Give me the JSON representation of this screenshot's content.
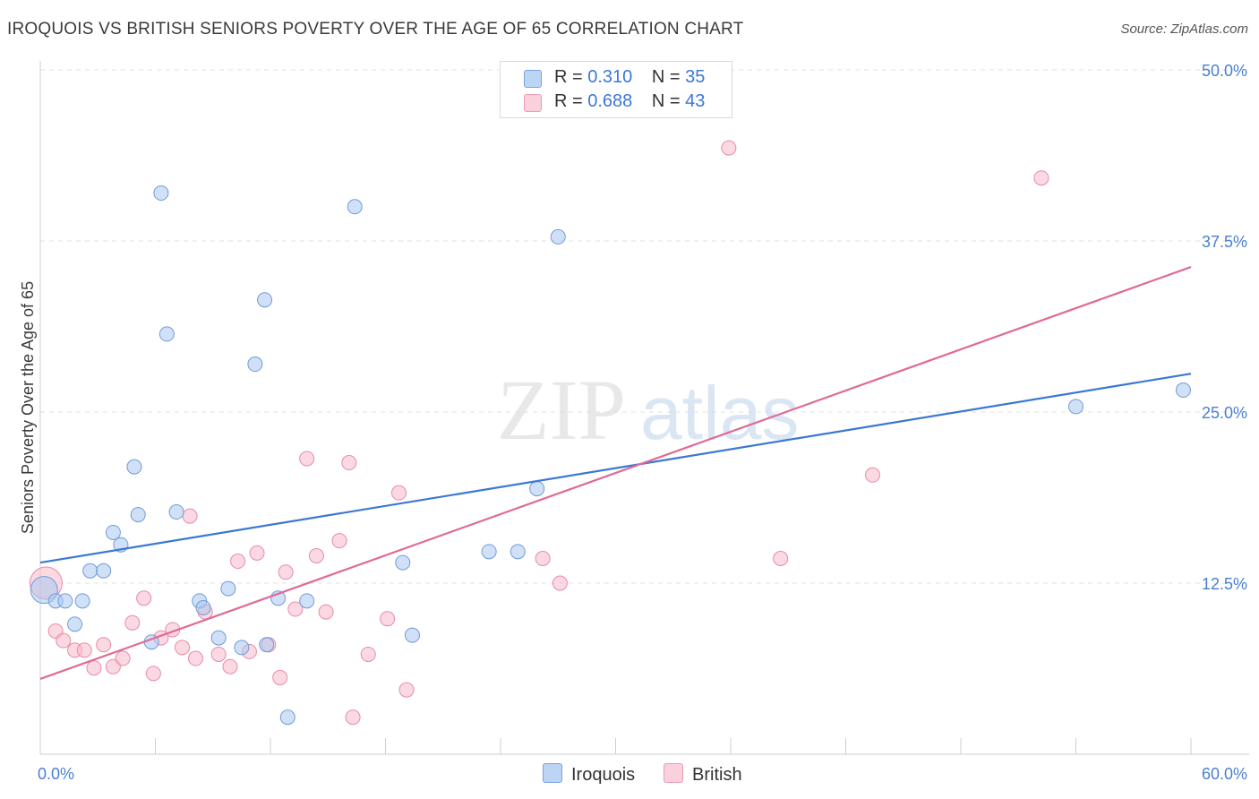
{
  "title": "IROQUOIS VS BRITISH SENIORS POVERTY OVER THE AGE OF 65 CORRELATION CHART",
  "source": "Source: ZipAtlas.com",
  "watermark": {
    "zip": "ZIP",
    "atlas": "atlas"
  },
  "legend": {
    "iroquois": {
      "r_label": "R =",
      "r_value": "0.310",
      "n_label": "N =",
      "n_value": "35"
    },
    "british": {
      "r_label": "R =",
      "r_value": "0.688",
      "n_label": "N =",
      "n_value": "43"
    }
  },
  "bottom_legend": {
    "iroquois": "Iroquois",
    "british": "British"
  },
  "colors": {
    "iroquois_fill": "#a9c8f0",
    "iroquois_stroke": "#6f9bd8",
    "iroquois_line": "#3a78d4",
    "british_fill": "#f7b9cc",
    "british_stroke": "#e98aa8",
    "british_line": "#e06a94"
  },
  "chart_data": {
    "type": "scatter",
    "title": "IROQUOIS VS BRITISH SENIORS POVERTY OVER THE AGE OF 65 CORRELATION CHART",
    "xlabel": "",
    "ylabel": "Seniors Poverty Over the Age of 65",
    "xlim": [
      0,
      60
    ],
    "ylim": [
      0,
      50
    ],
    "x_tick_labels": [
      "0.0%",
      "60.0%"
    ],
    "y_ticks": [
      12.5,
      25.0,
      37.5,
      50.0
    ],
    "y_tick_labels": [
      "12.5%",
      "25.0%",
      "37.5%",
      "50.0%"
    ],
    "grid": true,
    "series": [
      {
        "name": "Iroquois",
        "points": [
          [
            0.2,
            12.0
          ],
          [
            0.8,
            11.2
          ],
          [
            1.3,
            11.2
          ],
          [
            1.8,
            9.5
          ],
          [
            2.2,
            11.2
          ],
          [
            2.6,
            13.4
          ],
          [
            3.3,
            13.4
          ],
          [
            3.8,
            16.2
          ],
          [
            4.2,
            15.3
          ],
          [
            4.9,
            21.0
          ],
          [
            5.1,
            17.5
          ],
          [
            5.8,
            8.2
          ],
          [
            6.3,
            41.0
          ],
          [
            6.6,
            30.7
          ],
          [
            7.1,
            17.7
          ],
          [
            8.3,
            11.2
          ],
          [
            8.5,
            10.7
          ],
          [
            9.3,
            8.5
          ],
          [
            9.8,
            12.1
          ],
          [
            10.5,
            7.8
          ],
          [
            11.2,
            28.5
          ],
          [
            11.7,
            33.2
          ],
          [
            11.8,
            8.0
          ],
          [
            12.4,
            11.4
          ],
          [
            12.9,
            2.7
          ],
          [
            13.9,
            11.2
          ],
          [
            16.4,
            40.0
          ],
          [
            18.9,
            14.0
          ],
          [
            19.4,
            8.7
          ],
          [
            23.4,
            14.8
          ],
          [
            24.9,
            14.8
          ],
          [
            25.9,
            19.4
          ],
          [
            27.0,
            37.8
          ],
          [
            54.0,
            25.4
          ],
          [
            59.6,
            26.6
          ]
        ],
        "trend": {
          "x": [
            0,
            60
          ],
          "y": [
            14.0,
            27.8
          ]
        }
      },
      {
        "name": "British",
        "points": [
          [
            0.3,
            12.5
          ],
          [
            0.8,
            9.0
          ],
          [
            1.2,
            8.3
          ],
          [
            1.8,
            7.6
          ],
          [
            2.3,
            7.6
          ],
          [
            2.8,
            6.3
          ],
          [
            3.3,
            8.0
          ],
          [
            3.8,
            6.4
          ],
          [
            4.3,
            7.0
          ],
          [
            4.8,
            9.6
          ],
          [
            5.4,
            11.4
          ],
          [
            5.9,
            5.9
          ],
          [
            6.3,
            8.5
          ],
          [
            6.9,
            9.1
          ],
          [
            7.4,
            7.8
          ],
          [
            7.8,
            17.4
          ],
          [
            8.1,
            7.0
          ],
          [
            8.6,
            10.4
          ],
          [
            9.3,
            7.3
          ],
          [
            9.9,
            6.4
          ],
          [
            10.3,
            14.1
          ],
          [
            10.9,
            7.5
          ],
          [
            11.3,
            14.7
          ],
          [
            11.9,
            8.0
          ],
          [
            12.5,
            5.6
          ],
          [
            12.8,
            13.3
          ],
          [
            13.3,
            10.6
          ],
          [
            13.9,
            21.6
          ],
          [
            14.4,
            14.5
          ],
          [
            14.9,
            10.4
          ],
          [
            15.6,
            15.6
          ],
          [
            16.1,
            21.3
          ],
          [
            16.3,
            2.7
          ],
          [
            17.1,
            7.3
          ],
          [
            18.1,
            9.9
          ],
          [
            18.7,
            19.1
          ],
          [
            19.1,
            4.7
          ],
          [
            26.2,
            14.3
          ],
          [
            27.1,
            12.5
          ],
          [
            35.9,
            44.3
          ],
          [
            38.6,
            14.3
          ],
          [
            43.4,
            20.4
          ],
          [
            52.2,
            42.1
          ]
        ],
        "trend": {
          "x": [
            0,
            60
          ],
          "y": [
            5.5,
            35.6
          ]
        }
      }
    ]
  }
}
